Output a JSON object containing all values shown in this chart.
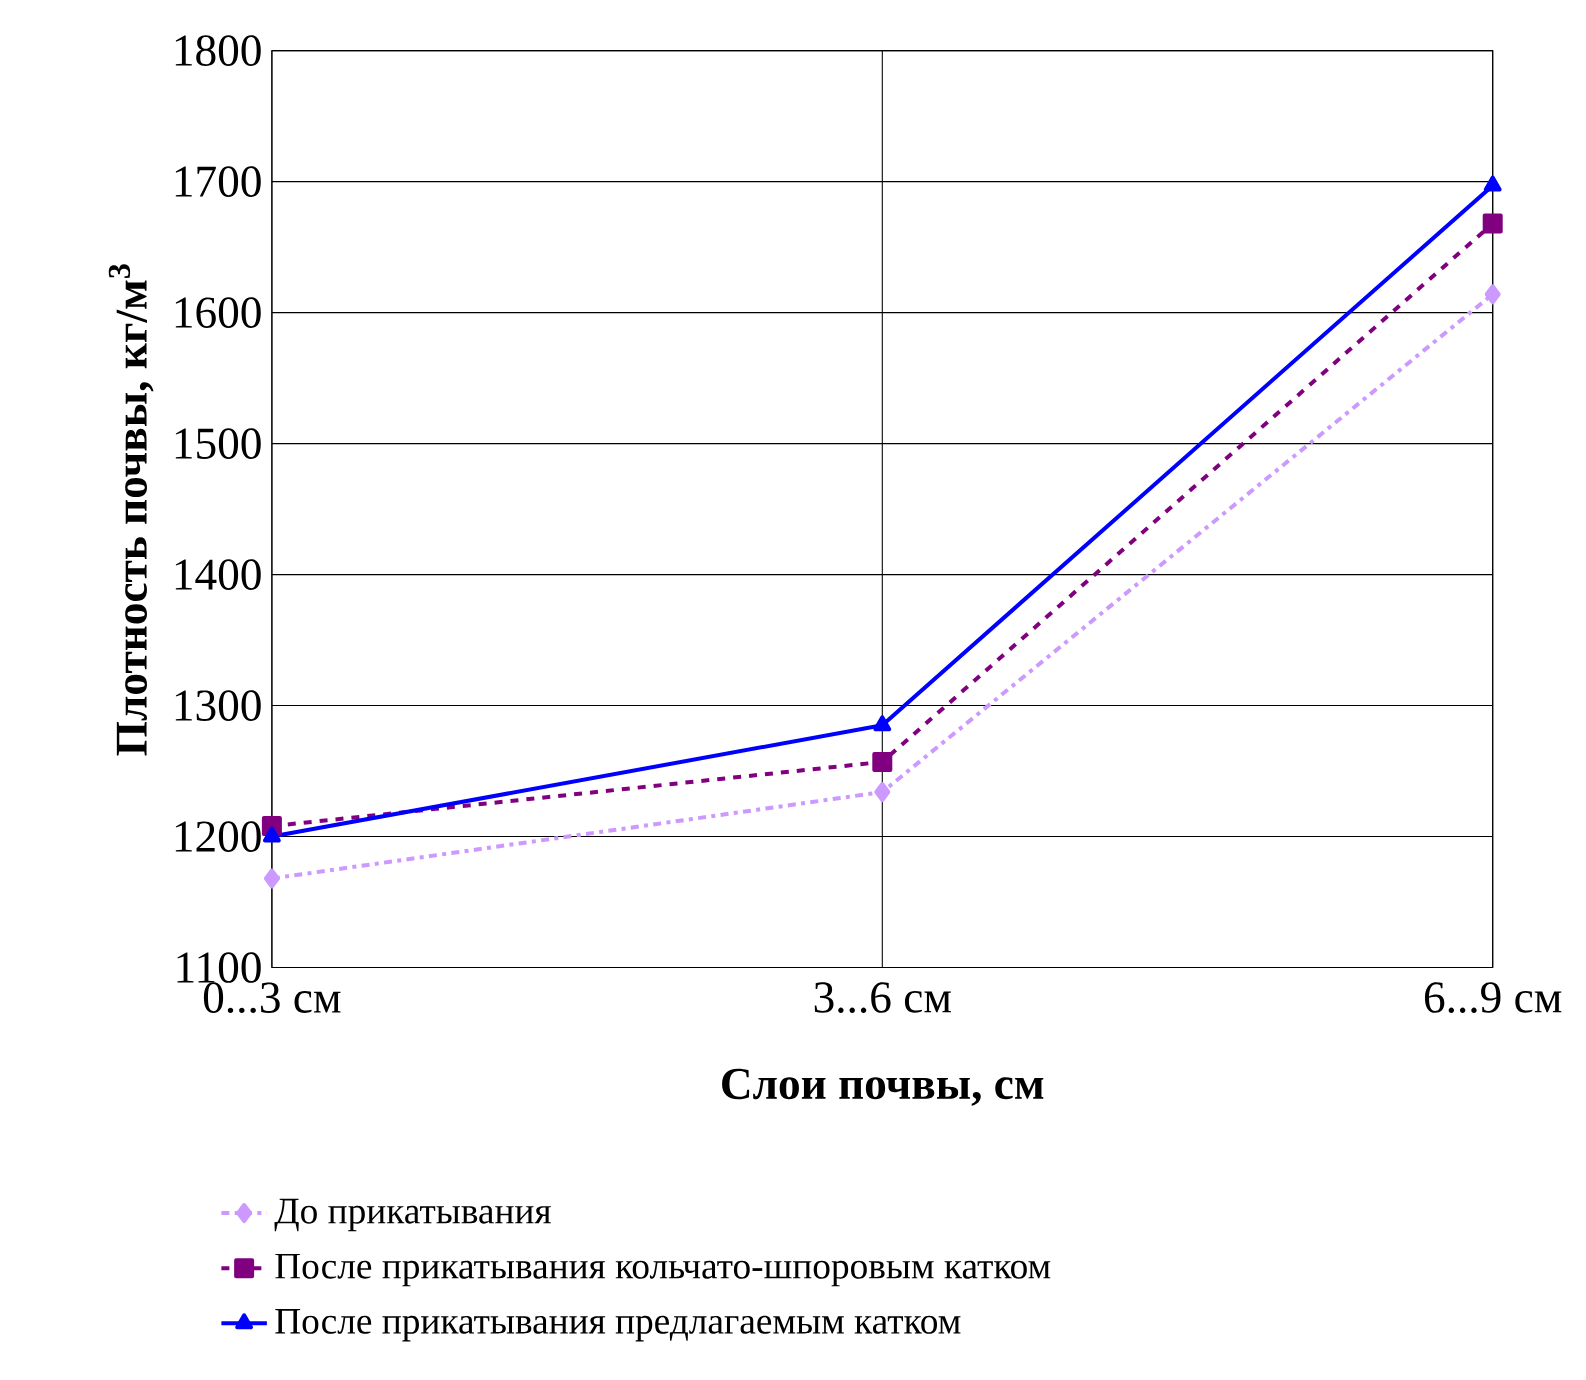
{
  "chart_data": {
    "type": "line",
    "xlabel": "Слои почвы, см",
    "ylabel": "Плотность почвы, кг/м$^{3}$",
    "categories": [
      "0...3 см",
      "3...6 см",
      "6...9 см"
    ],
    "series": [
      {
        "name": "До прикатывания",
        "color": "#cc99ff",
        "values": [
          1168,
          1234,
          1614
        ],
        "marker": "diamond",
        "line_style": "dashdot"
      },
      {
        "name": "После прикатывания кольчато-шпоровым катком",
        "color": "#800080",
        "values": [
          1208,
          1257,
          1668
        ],
        "marker": "square",
        "line_style": "dashed"
      },
      {
        "name": "После прикатывания предлагаемым катком",
        "color": "#0000ff",
        "values": [
          1200,
          1285,
          1697
        ],
        "marker": "triangle",
        "line_style": "solid"
      }
    ],
    "ylim": [
      1100,
      1800
    ],
    "yticks": [
      1100,
      1200,
      1300,
      1400,
      1500,
      1600,
      1700,
      1800
    ],
    "grid": true,
    "legend": "bottom"
  }
}
